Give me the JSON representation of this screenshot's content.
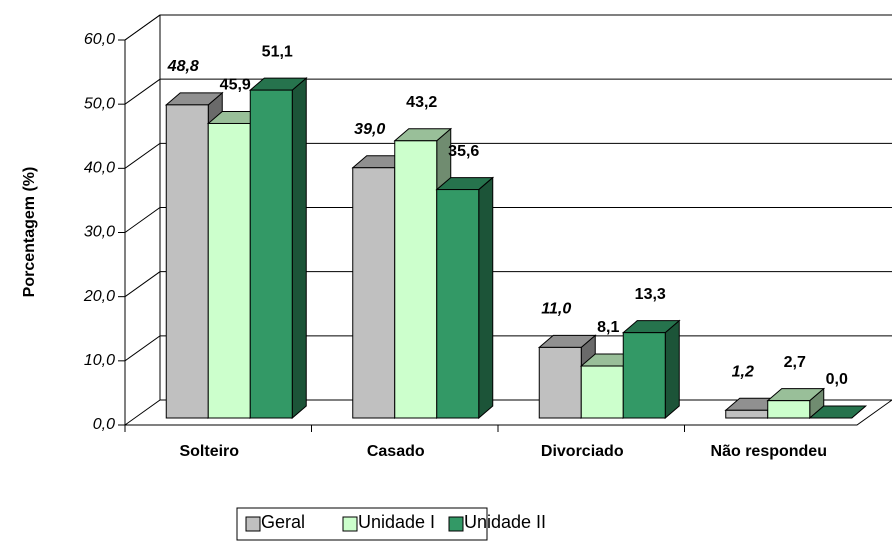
{
  "chart_data": {
    "type": "bar3d",
    "y_label": "Porcentagem (%)",
    "categories": [
      "Solteiro",
      "Casado",
      "Divorciado",
      "Não respondeu"
    ],
    "series": [
      {
        "name": "Geral",
        "color": "#c0c0c0",
        "values": [
          48.8,
          39.0,
          11.0,
          1.2
        ],
        "value_labels": [
          "48,8",
          "39,0",
          "11,0",
          "1,2"
        ]
      },
      {
        "name": "Unidade I",
        "color": "#ccffcc",
        "values": [
          45.9,
          43.2,
          8.1,
          2.7
        ],
        "value_labels": [
          "45,9",
          "43,2",
          "8,1",
          "2,7"
        ]
      },
      {
        "name": "Unidade II",
        "color": "#339966",
        "values": [
          51.1,
          35.6,
          13.3,
          0.0
        ],
        "value_labels": [
          "51,1",
          "35,6",
          "13,3",
          "0,0"
        ]
      }
    ],
    "ylim": [
      0,
      60
    ],
    "yticks": [
      {
        "value": 0,
        "label": "0,0"
      },
      {
        "value": 10,
        "label": "10,0"
      },
      {
        "value": 20,
        "label": "20,0"
      },
      {
        "value": 30,
        "label": "30,0"
      },
      {
        "value": 40,
        "label": "40,0"
      },
      {
        "value": 50,
        "label": "50,0"
      },
      {
        "value": 60,
        "label": "60,0"
      }
    ],
    "grid": true,
    "legend": "bottom"
  }
}
